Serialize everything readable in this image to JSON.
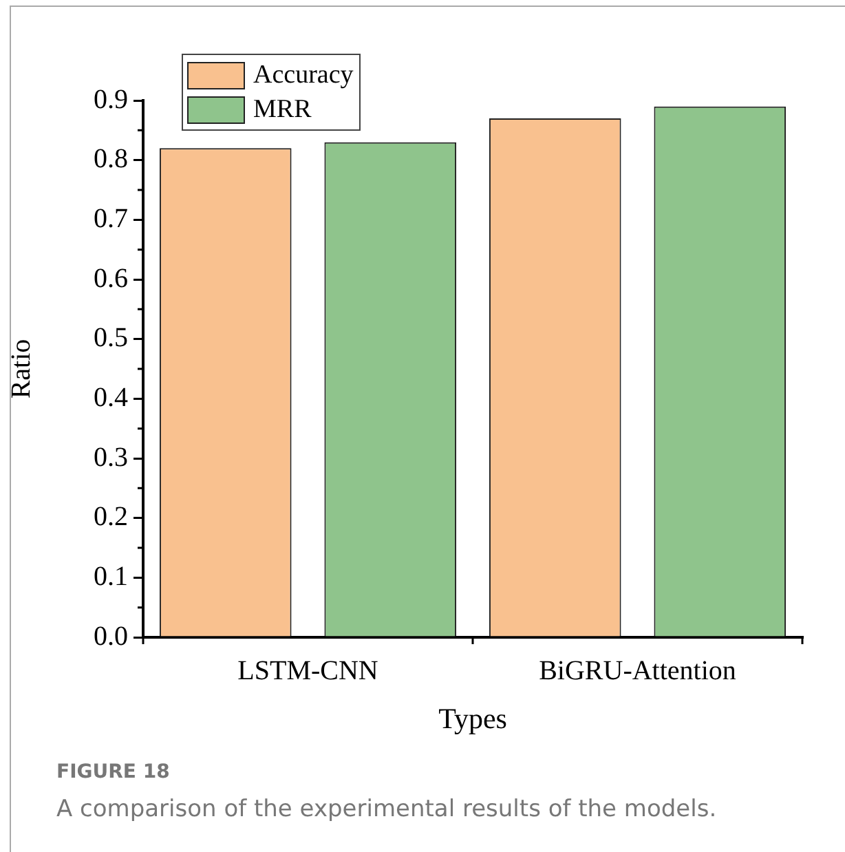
{
  "chart_data": {
    "type": "bar",
    "xlabel": "Types",
    "ylabel": "Ratio",
    "categories": [
      "LSTM-CNN",
      "BiGRU-Attention"
    ],
    "series": [
      {
        "name": "Accuracy",
        "color": "#f9c18f",
        "values": [
          0.82,
          0.87
        ]
      },
      {
        "name": "MRR",
        "color": "#8fc48c",
        "values": [
          0.83,
          0.89
        ]
      }
    ],
    "ylim": [
      0,
      0.9
    ],
    "yticks": [
      {
        "value": 0,
        "label": "0.0"
      },
      0.1,
      0.2,
      0.3,
      0.4,
      0.5,
      0.6,
      0.7,
      0.8,
      0.9
    ],
    "grid": false,
    "legend": "top left",
    "annotations": [
      "FIGURE 18",
      "A comparison of the experimental results of the models."
    ]
  }
}
